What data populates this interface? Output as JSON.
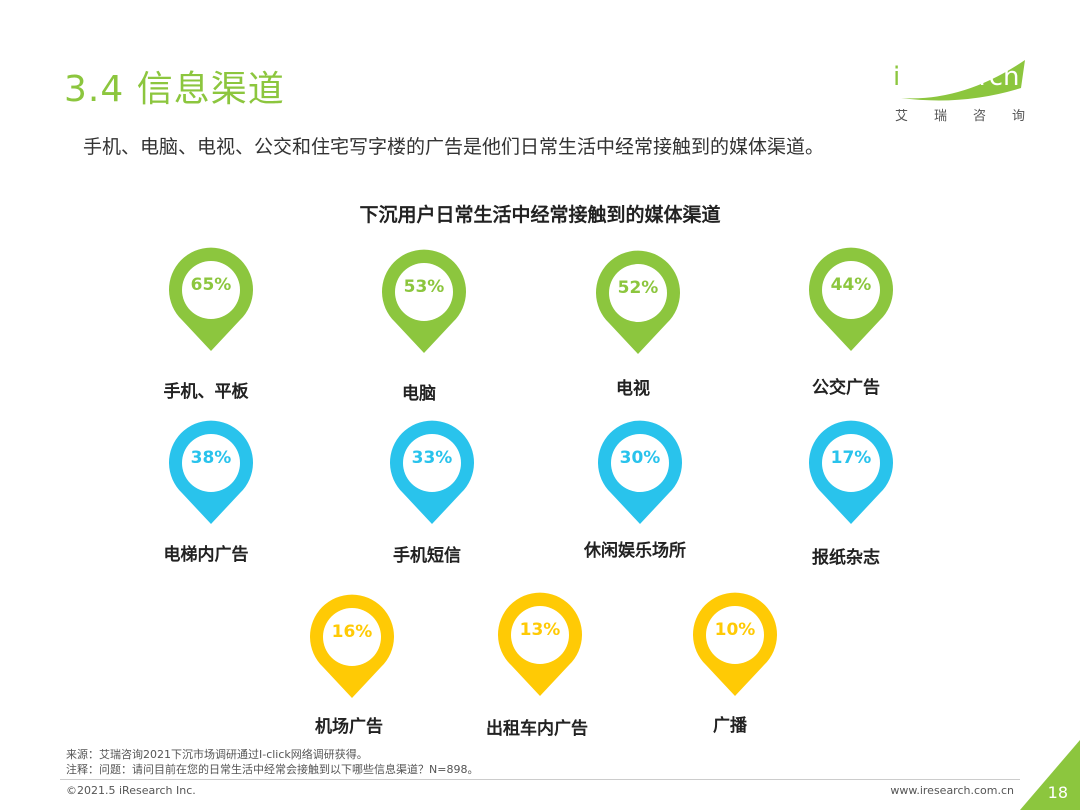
{
  "header": {
    "title": "3.4 信息渠道",
    "subtitle": "手机、电脑、电视、公交和住宅写字楼的广告是他们日常生活中经常接触到的媒体渠道。"
  },
  "logo": {
    "name_i": "i",
    "name_rest": "Research",
    "sub_chars": [
      "艾",
      "瑞",
      "咨",
      "询"
    ]
  },
  "chart_data": {
    "type": "pictorial",
    "title": "下沉用户日常生活中经常接触到的媒体渠道",
    "unit": "%",
    "items": [
      {
        "label": "手机、平板",
        "value": 65,
        "display": "65%",
        "group": 1
      },
      {
        "label": "电脑",
        "value": 53,
        "display": "53%",
        "group": 1
      },
      {
        "label": "电视",
        "value": 52,
        "display": "52%",
        "group": 1
      },
      {
        "label": "公交广告",
        "value": 44,
        "display": "44%",
        "group": 1
      },
      {
        "label": "电梯内广告",
        "value": 38,
        "display": "38%",
        "group": 2
      },
      {
        "label": "手机短信",
        "value": 33,
        "display": "33%",
        "group": 2
      },
      {
        "label": "休闲娱乐场所",
        "value": 30,
        "display": "30%",
        "group": 2
      },
      {
        "label": "报纸杂志",
        "value": 17,
        "display": "17%",
        "group": 2
      },
      {
        "label": "机场广告",
        "value": 16,
        "display": "16%",
        "group": 3
      },
      {
        "label": "出租车内广告",
        "value": 13,
        "display": "13%",
        "group": 3
      },
      {
        "label": "广播",
        "value": 10,
        "display": "10%",
        "group": 3
      }
    ],
    "group_colors": {
      "1": "#8CC63E",
      "2": "#29C3EC",
      "3": "#FFCA05"
    }
  },
  "footer": {
    "source": "来源：艾瑞咨询2021下沉市场调研通过I-click网络调研获得。",
    "note": "注释：问题：请问目前在您的日常生活中经常会接触到以下哪些信息渠道？N=898。",
    "copyright": "©2021.5 iResearch Inc.",
    "website": "www.iresearch.com.cn",
    "page_number": "18"
  }
}
